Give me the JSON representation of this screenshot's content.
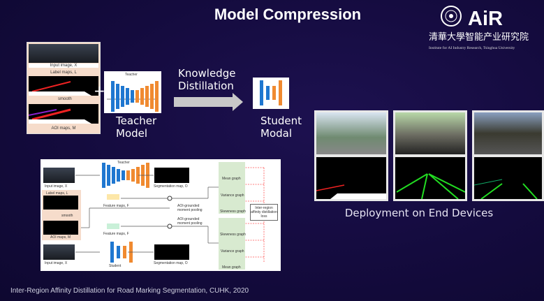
{
  "slide": {
    "title": "Model Compression",
    "logo": {
      "text": "AIR",
      "chinese": "清華大學智能产业研究院",
      "english": "Institute for AI Industry Research, Tsinghua University"
    },
    "inputs_figure": {
      "input_label": "Input image, X",
      "label_maps": "Label maps, L",
      "smooth": "smooth",
      "aoi_maps": "AOI maps, M"
    },
    "plus": "+",
    "teacher_figure_label": "Teacher",
    "teacher_caption": [
      "Teacher",
      "Model"
    ],
    "distill_label": [
      "Knowledge",
      "Distillation"
    ],
    "student_caption": [
      "Student",
      "Modal"
    ],
    "diagram": {
      "teacher": "Teacher",
      "student": "Student",
      "input_image": "Input image, X",
      "label_maps": "Label maps, L",
      "smooth": "smooth",
      "aoi_maps": "AOI maps, M",
      "feature_maps_teacher": "Feature maps, F",
      "feature_maps_student": "Feature maps, F",
      "seg_map": "Segmentation map, O",
      "pooling": "AOI-grounded moment pooling",
      "graphs_teacher": [
        "Mean graph",
        "Variance graph",
        "Skewness graph"
      ],
      "graphs_student": [
        "Skewness graph",
        "Variance graph",
        "Mean graph"
      ],
      "loss": "Inter-region affinity distillation loss"
    },
    "deployment_caption": "Deployment on End Devices",
    "footer": "Inter-Region Affinity Distillation for Road Marking Segmentation, CUHK, 2020",
    "colors": {
      "background": "#140b3e",
      "encoder": "#1f77d0",
      "decoder": "#f08a30",
      "lane": "#22dd22",
      "arrow": "#c8c8c8"
    }
  }
}
